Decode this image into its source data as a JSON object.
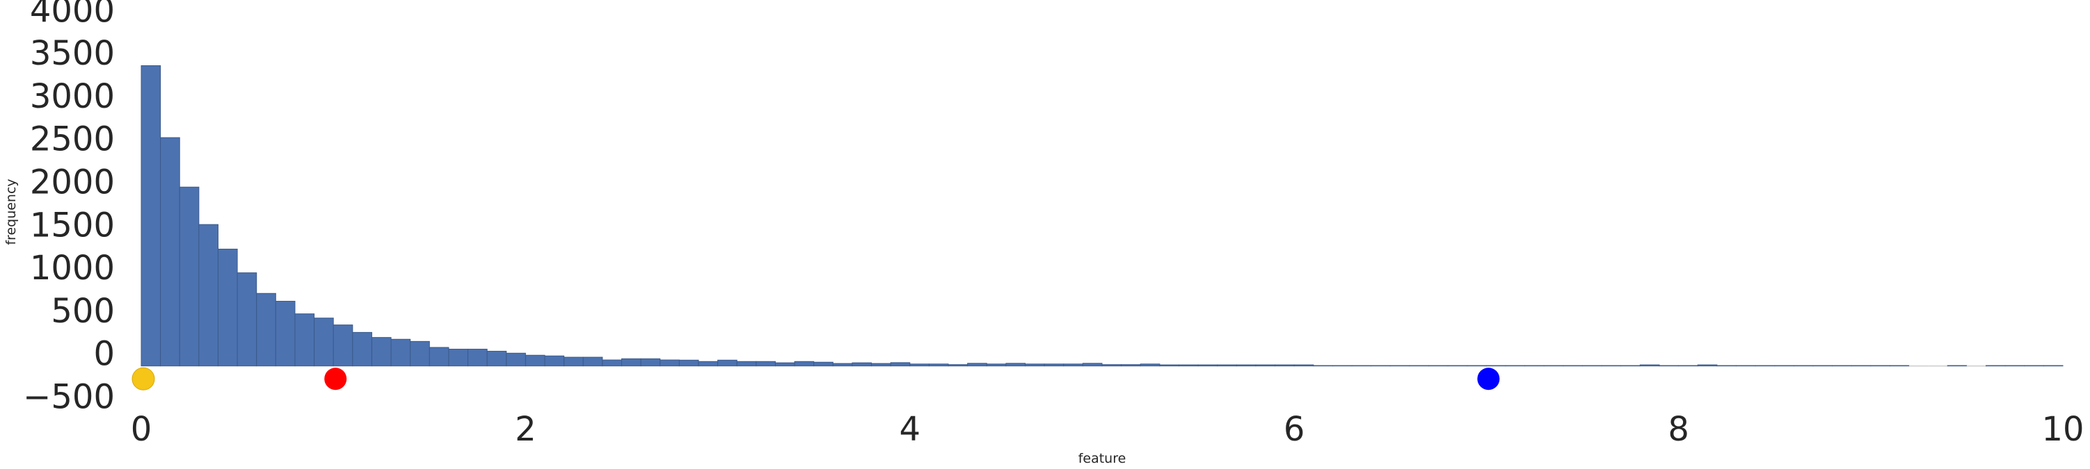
{
  "chart_data": {
    "type": "bar",
    "subtype": "histogram",
    "title": "",
    "xlabel": "feature",
    "ylabel": "frequency",
    "xlim": [
      0,
      10
    ],
    "ylim": [
      -500,
      4000
    ],
    "grid": false,
    "bin_width": 0.1,
    "bin_start": 0,
    "x_ticks": [
      "0",
      "2",
      "4",
      "6",
      "8",
      "10"
    ],
    "y_ticks": [
      "−500",
      "0",
      "500",
      "1000",
      "1500",
      "2000",
      "2500",
      "3000",
      "3500",
      "4000"
    ],
    "series": [
      {
        "color": "#4c72b0",
        "values": [
          3497,
          2659,
          2083,
          1647,
          1361,
          1085,
          845,
          754,
          607,
          558,
          478,
          391,
          332,
          311,
          286,
          216,
          196,
          196,
          172,
          149,
          125,
          117,
          102,
          102,
          70,
          84,
          84,
          70,
          68,
          52,
          68,
          52,
          52,
          37,
          52,
          44,
          29,
          37,
          29,
          39,
          23,
          23,
          16,
          31,
          23,
          31,
          23,
          23,
          23,
          31,
          16,
          16,
          23,
          13,
          13,
          13,
          13,
          13,
          13,
          13,
          13,
          5,
          5,
          5,
          5,
          5,
          5,
          5,
          5,
          5,
          5,
          5,
          5,
          5,
          5,
          5,
          5,
          5,
          13,
          5,
          5,
          13,
          5,
          5,
          5,
          5,
          5,
          5,
          5,
          5,
          5,
          5,
          0,
          0,
          5,
          0,
          5,
          5,
          5,
          5
        ]
      }
    ],
    "markers": [
      {
        "x": 0,
        "y": -150,
        "color": "#f5c518"
      },
      {
        "x": 1,
        "y": -150,
        "color": "#ff0000"
      },
      {
        "x": 7,
        "y": -150,
        "color": "#0000ff"
      }
    ]
  }
}
